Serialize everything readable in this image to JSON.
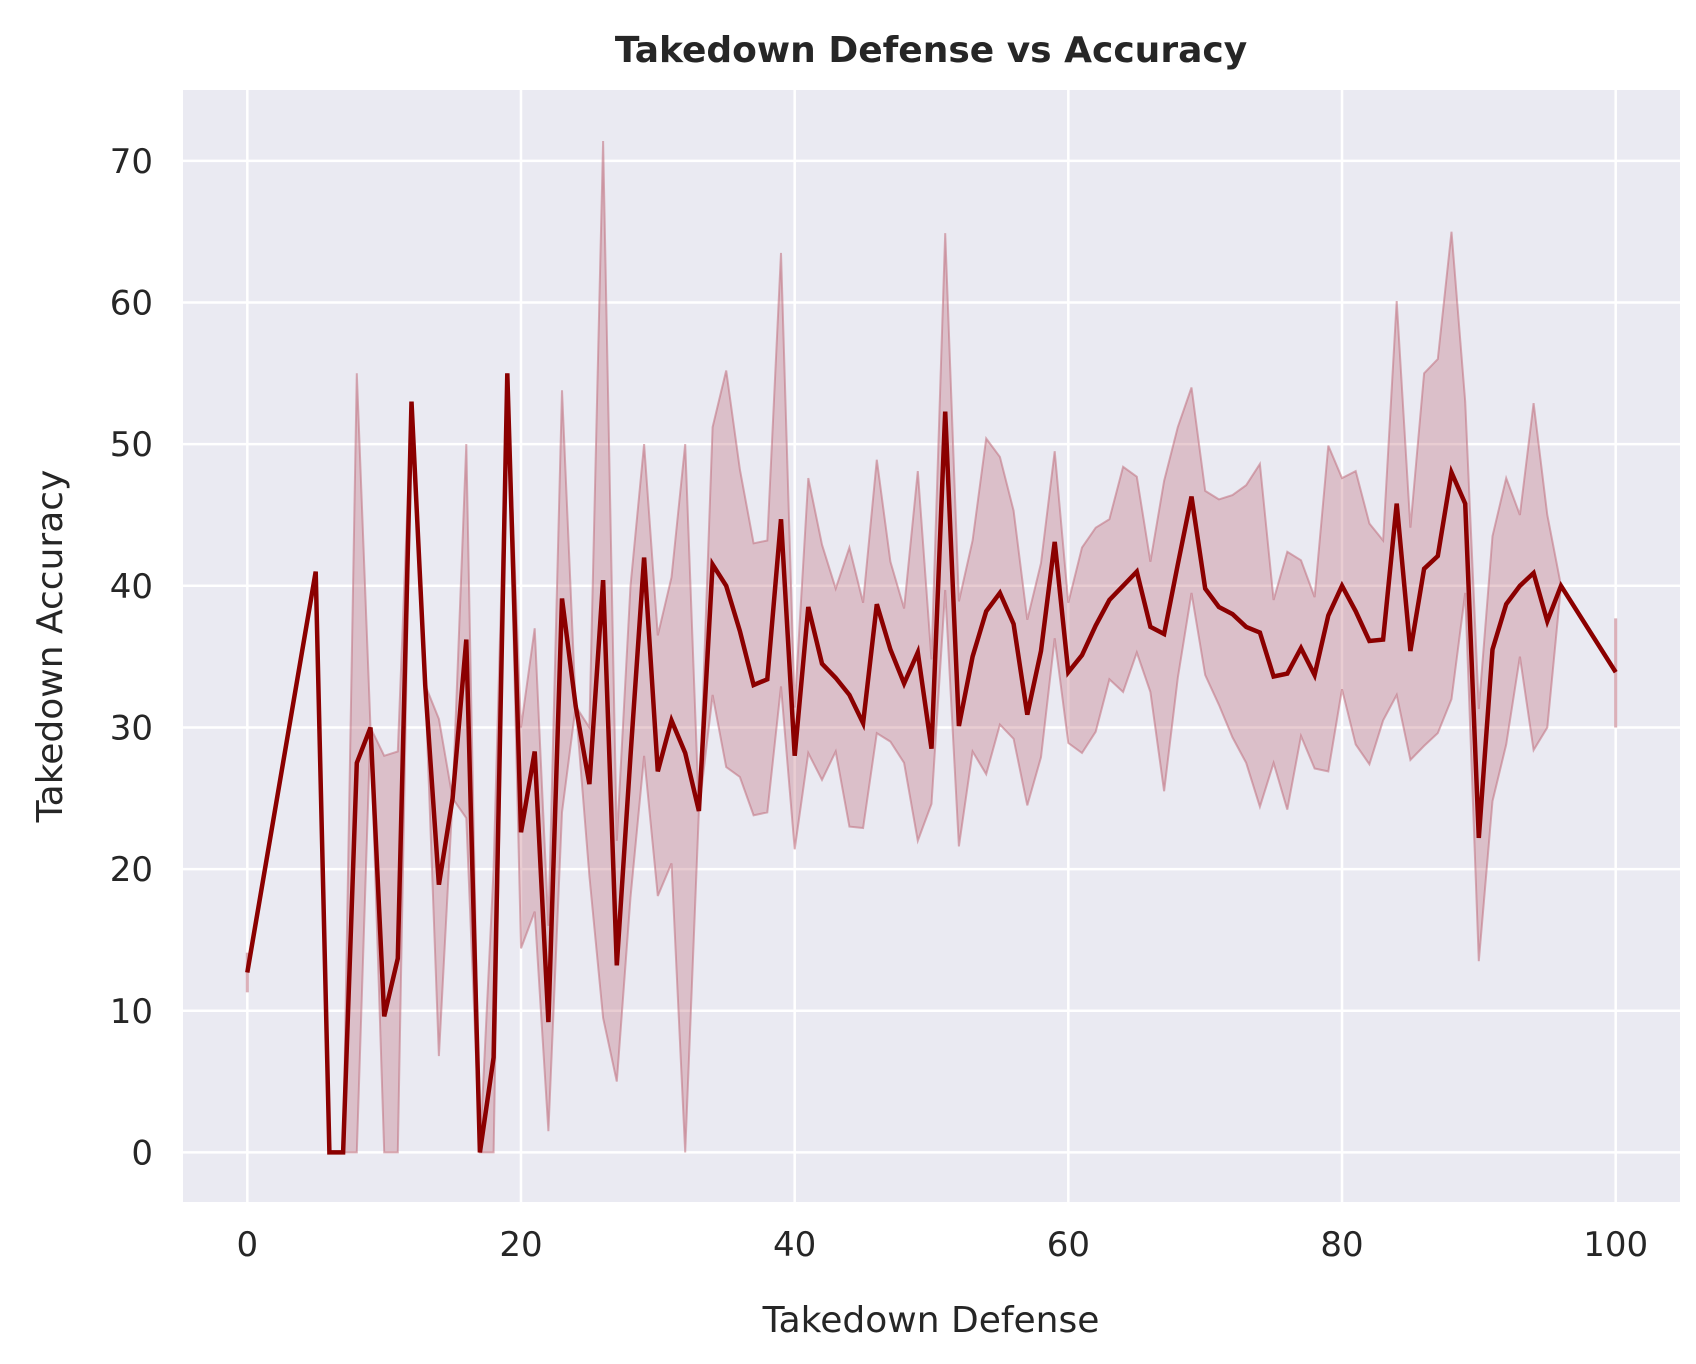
{
  "chart_data": {
    "type": "line",
    "title": "Takedown Defense vs Accuracy",
    "xlabel": "Takedown Defense",
    "ylabel": "Takedown Accuracy",
    "xlim": [
      -4.7,
      104.7
    ],
    "ylim": [
      -3.5,
      75
    ],
    "xticks": [
      0,
      20,
      40,
      60,
      80,
      100
    ],
    "yticks": [
      0,
      10,
      20,
      30,
      40,
      50,
      60,
      70
    ],
    "grid": true,
    "colors": {
      "line": "#8b0000",
      "band": "#c0707d",
      "background": "#eaeaf2",
      "grid": "#ffffff"
    },
    "series": [
      {
        "x": [
          0,
          5,
          6,
          7,
          8,
          9,
          10,
          11,
          12,
          13,
          14,
          15,
          16,
          17,
          18,
          19,
          20,
          21,
          22,
          23,
          24,
          25,
          26,
          27,
          28,
          29,
          30,
          31,
          32,
          33,
          34,
          35,
          36,
          37,
          38,
          39,
          40,
          41,
          42,
          43,
          44,
          45,
          46,
          47,
          48,
          49,
          50,
          51,
          52,
          53,
          54,
          55,
          56,
          57,
          58,
          59,
          60,
          61,
          62,
          63,
          64,
          65,
          66,
          67,
          68,
          69,
          70,
          71,
          72,
          73,
          74,
          75,
          76,
          77,
          78,
          79,
          80,
          81,
          82,
          83,
          84,
          85,
          86,
          87,
          88,
          89,
          90,
          91,
          92,
          93,
          94,
          95,
          96,
          100
        ],
        "y": [
          12.7,
          41,
          0,
          0,
          27.5,
          30,
          9.6,
          13.7,
          53,
          33,
          18.9,
          25,
          36.2,
          0,
          6.7,
          55,
          22.6,
          28.3,
          9.2,
          39.1,
          31.5,
          26,
          40.4,
          13.2,
          28,
          42,
          26.9,
          30.5,
          28.2,
          24.1,
          41.5,
          40,
          36.8,
          33,
          33.4,
          44.7,
          28,
          38.5,
          34.5,
          33.5,
          32.3,
          30.3,
          38.7,
          35.5,
          33.1,
          35.3,
          28.5,
          52.3,
          30.1,
          35,
          38.2,
          39.5,
          37.3,
          30.9,
          35.4,
          43.1,
          33.9,
          35.1,
          37.2,
          39,
          40,
          41,
          37.1,
          36.6,
          41.5,
          46.3,
          39.8,
          38.5,
          38,
          37.1,
          36.7,
          33.6,
          33.8,
          35.6,
          33.7,
          37.9,
          40,
          38.2,
          36.1,
          36.2,
          45.8,
          35.4,
          41.2,
          42.1,
          48,
          45.8,
          22.2,
          35.5,
          38.7,
          40,
          40.9,
          37.5,
          40,
          33.9
        ],
        "ci_low": [
          11.3,
          41,
          0,
          0,
          0,
          30,
          0,
          0,
          53,
          33,
          6.8,
          25,
          23.6,
          0,
          0,
          55,
          14.4,
          17,
          1.5,
          24,
          31.5,
          19.5,
          9.5,
          5,
          18,
          28,
          18.1,
          20.4,
          0,
          24.1,
          32.3,
          27.2,
          26.5,
          23.8,
          24,
          32.9,
          21.4,
          28.2,
          26.3,
          28.3,
          23,
          22.9,
          29.6,
          29,
          27.5,
          22,
          24.6,
          39.7,
          21.6,
          28.3,
          26.7,
          30.2,
          29.2,
          24.5,
          27.9,
          36.3,
          28.9,
          28.2,
          29.7,
          33.4,
          32.5,
          35.3,
          32.5,
          25.5,
          33.5,
          39.5,
          33.7,
          31.6,
          29.3,
          27.5,
          24.4,
          27.5,
          24.2,
          29.4,
          27.1,
          26.9,
          32.7,
          28.8,
          27.4,
          30.5,
          32.3,
          27.7,
          28.7,
          29.6,
          32,
          39.5,
          13.5,
          24.8,
          28.8,
          35,
          28.4,
          30,
          40,
          30
        ],
        "ci_high": [
          14.1,
          41,
          0,
          0,
          55,
          30,
          28,
          28.3,
          53,
          33,
          30.6,
          25,
          50,
          0,
          20,
          55,
          30,
          37,
          16,
          53.8,
          31.5,
          30,
          71.4,
          22,
          40,
          50,
          36.5,
          40.6,
          50,
          24.1,
          51.2,
          55.2,
          48.2,
          43,
          43.2,
          63.5,
          31.4,
          47.6,
          42.9,
          39.8,
          42.7,
          38.8,
          48.9,
          41.7,
          38.4,
          48.1,
          34.8,
          64.9,
          38.9,
          43.2,
          50.4,
          49.1,
          45.3,
          37.6,
          41.6,
          49.5,
          38.8,
          42.7,
          44.1,
          44.7,
          48.4,
          47.7,
          41.7,
          47.4,
          51.2,
          54,
          46.7,
          46.1,
          46.4,
          47.1,
          48.6,
          39,
          42.4,
          41.8,
          39.2,
          49.9,
          47.6,
          48.1,
          44.4,
          43.2,
          60.1,
          44.1,
          55,
          56,
          65,
          53,
          31.3,
          43.5,
          47.6,
          45,
          52.9,
          45,
          40,
          37.7
        ]
      }
    ]
  }
}
